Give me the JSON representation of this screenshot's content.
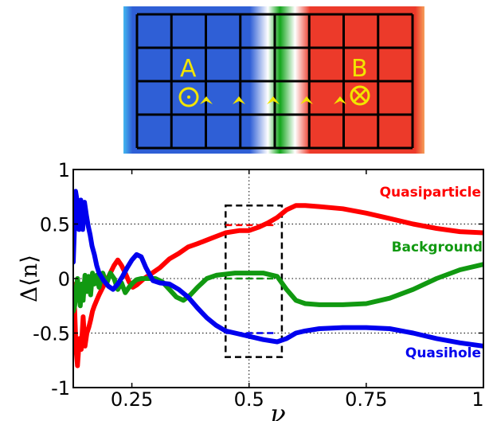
{
  "panel_top": {
    "label_a": "A",
    "label_b": "B",
    "colors": {
      "left": "#2f5fd6",
      "middle": "#12a51a",
      "right": "#ec3a2a",
      "marker": "#f2e500"
    }
  },
  "chart_data": {
    "type": "line",
    "xlabel": "ν",
    "ylabel": "Δ⟨n⟩",
    "xlim": [
      0.125,
      1.0
    ],
    "ylim": [
      -1.0,
      1.0
    ],
    "xticks": [
      0.25,
      0.5,
      0.75,
      1.0
    ],
    "xtick_labels": [
      "0.25",
      "0.5",
      "0.75",
      "1"
    ],
    "yticks": [
      -1.0,
      -0.5,
      0.0,
      0.5,
      1.0
    ],
    "ytick_labels": [
      "-1",
      "-0.5",
      "0",
      "0.5",
      "1"
    ],
    "grid": "dotted at y=0.5, y=0, y=-0.5 and x=0.5",
    "series": [
      {
        "name": "Quasiparticle",
        "color": "#ff0000",
        "x": [
          0.125,
          0.128,
          0.131,
          0.134,
          0.138,
          0.142,
          0.146,
          0.15,
          0.154,
          0.158,
          0.162,
          0.166,
          0.17,
          0.175,
          0.18,
          0.188,
          0.196,
          0.204,
          0.212,
          0.22,
          0.228,
          0.236,
          0.244,
          0.252,
          0.26,
          0.268,
          0.276,
          0.29,
          0.31,
          0.33,
          0.35,
          0.37,
          0.39,
          0.42,
          0.45,
          0.48,
          0.5,
          0.52,
          0.54,
          0.56,
          0.58,
          0.6,
          0.62,
          0.65,
          0.7,
          0.75,
          0.8,
          0.85,
          0.9,
          0.95,
          1.0
        ],
        "values": [
          -0.05,
          -0.3,
          -0.65,
          -0.8,
          -0.55,
          -0.65,
          -0.35,
          -0.62,
          -0.5,
          -0.45,
          -0.38,
          -0.3,
          -0.25,
          -0.2,
          -0.15,
          -0.08,
          -0.02,
          0.05,
          0.12,
          0.17,
          0.12,
          0.05,
          -0.03,
          -0.08,
          -0.06,
          -0.03,
          0.0,
          0.04,
          0.1,
          0.18,
          0.23,
          0.29,
          0.32,
          0.37,
          0.42,
          0.44,
          0.44,
          0.47,
          0.51,
          0.56,
          0.63,
          0.67,
          0.67,
          0.66,
          0.64,
          0.6,
          0.55,
          0.5,
          0.46,
          0.43,
          0.42
        ]
      },
      {
        "name": "Background",
        "color": "#119911",
        "x": [
          0.125,
          0.128,
          0.131,
          0.134,
          0.137,
          0.14,
          0.143,
          0.146,
          0.15,
          0.154,
          0.158,
          0.162,
          0.166,
          0.17,
          0.175,
          0.18,
          0.188,
          0.196,
          0.204,
          0.212,
          0.22,
          0.228,
          0.236,
          0.244,
          0.252,
          0.26,
          0.27,
          0.285,
          0.3,
          0.315,
          0.33,
          0.345,
          0.36,
          0.375,
          0.39,
          0.41,
          0.43,
          0.45,
          0.47,
          0.5,
          0.53,
          0.56,
          0.58,
          0.6,
          0.62,
          0.65,
          0.7,
          0.75,
          0.8,
          0.85,
          0.9,
          0.95,
          1.0
        ],
        "values": [
          -0.3,
          -0.25,
          -0.1,
          0.0,
          -0.15,
          -0.25,
          -0.05,
          -0.2,
          0.03,
          -0.12,
          0.02,
          -0.15,
          0.05,
          -0.05,
          0.03,
          -0.08,
          0.05,
          -0.05,
          0.05,
          0.0,
          -0.1,
          -0.04,
          -0.13,
          -0.08,
          -0.04,
          -0.01,
          0.0,
          0.0,
          0.0,
          -0.03,
          -0.1,
          -0.17,
          -0.2,
          -0.15,
          -0.08,
          0.0,
          0.03,
          0.04,
          0.05,
          0.05,
          0.05,
          0.02,
          -0.1,
          -0.2,
          -0.23,
          -0.24,
          -0.24,
          -0.23,
          -0.18,
          -0.1,
          0.0,
          0.08,
          0.13
        ]
      },
      {
        "name": "Quasihole",
        "color": "#0000ee",
        "x": [
          0.125,
          0.127,
          0.13,
          0.133,
          0.137,
          0.141,
          0.145,
          0.149,
          0.153,
          0.157,
          0.161,
          0.165,
          0.17,
          0.175,
          0.18,
          0.19,
          0.2,
          0.21,
          0.22,
          0.23,
          0.24,
          0.25,
          0.26,
          0.27,
          0.28,
          0.295,
          0.31,
          0.33,
          0.35,
          0.37,
          0.39,
          0.41,
          0.43,
          0.45,
          0.47,
          0.5,
          0.53,
          0.56,
          0.58,
          0.6,
          0.62,
          0.65,
          0.7,
          0.75,
          0.8,
          0.85,
          0.9,
          0.95,
          1.0
        ],
        "values": [
          0.15,
          0.4,
          0.8,
          0.72,
          0.45,
          0.72,
          0.45,
          0.7,
          0.58,
          0.48,
          0.4,
          0.3,
          0.22,
          0.12,
          0.05,
          -0.02,
          -0.07,
          -0.1,
          -0.05,
          0.02,
          0.1,
          0.17,
          0.22,
          0.2,
          0.1,
          -0.02,
          -0.04,
          -0.05,
          -0.1,
          -0.17,
          -0.27,
          -0.36,
          -0.43,
          -0.48,
          -0.5,
          -0.53,
          -0.56,
          -0.58,
          -0.55,
          -0.5,
          -0.48,
          -0.46,
          -0.45,
          -0.45,
          -0.46,
          -0.5,
          -0.55,
          -0.59,
          -0.62
        ]
      }
    ],
    "annotations": {
      "dashed_box": {
        "x": [
          0.45,
          0.57
        ],
        "y": [
          -0.72,
          0.67
        ]
      },
      "dashed_segments": [
        {
          "color": "#ff0000",
          "x": [
            0.45,
            0.56
          ],
          "y": 0.49
        },
        {
          "color": "#119911",
          "x": [
            0.45,
            0.56
          ],
          "y": 0.0
        },
        {
          "color": "#0000ee",
          "x": [
            0.45,
            0.56
          ],
          "y": -0.5
        }
      ]
    }
  }
}
